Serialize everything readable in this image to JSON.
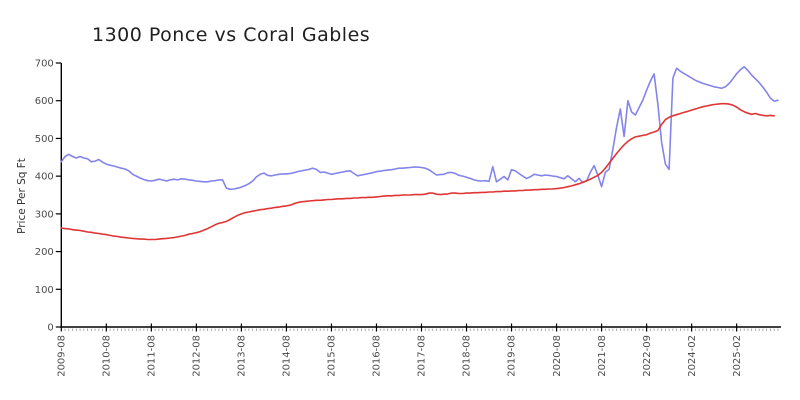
{
  "chart_data": {
    "type": "line",
    "title": "1300 Ponce vs Coral Gables",
    "ylabel": "Price Per Sq Ft",
    "xlabel": "",
    "ylim": [
      0,
      700
    ],
    "y_ticks": [
      0,
      100,
      200,
      300,
      400,
      500,
      600,
      700
    ],
    "x_tick_labels": [
      "2009-08",
      "2010-08",
      "2011-08",
      "2012-08",
      "2013-08",
      "2014-08",
      "2015-08",
      "2016-08",
      "2017-08",
      "2018-08",
      "2019-08",
      "2020-08",
      "2021-08",
      "2022-09",
      "2024-02",
      "2025-02"
    ],
    "x_tick_indices": [
      0,
      12,
      24,
      36,
      48,
      60,
      72,
      84,
      96,
      108,
      120,
      132,
      144,
      156,
      168,
      180
    ],
    "grid": false,
    "legend_position": "none",
    "style": "hand-drawn-xkcd",
    "axis_color": "#000000",
    "tick_label_color": "#4d4d4d",
    "minor_tick_color": "#9a9a9a",
    "series": [
      {
        "name": "Coral Gables",
        "color": "#8484ec",
        "values": [
          438,
          452,
          458,
          452,
          448,
          452,
          448,
          446,
          438,
          440,
          444,
          437,
          432,
          429,
          427,
          424,
          421,
          419,
          414,
          405,
          400,
          395,
          391,
          388,
          387,
          389,
          392,
          390,
          387,
          390,
          392,
          390,
          393,
          392,
          390,
          389,
          387,
          386,
          385,
          385,
          387,
          388,
          390,
          390,
          368,
          365,
          366,
          368,
          371,
          375,
          380,
          387,
          398,
          405,
          408,
          402,
          401,
          403,
          405,
          406,
          406,
          407,
          409,
          412,
          414,
          416,
          418,
          421,
          418,
          410,
          411,
          408,
          405,
          407,
          409,
          411,
          413,
          414,
          407,
          401,
          403,
          405,
          407,
          409,
          412,
          413,
          415,
          416,
          417,
          419,
          421,
          421,
          422,
          423,
          424,
          424,
          423,
          421,
          417,
          410,
          403,
          404,
          405,
          409,
          410,
          407,
          402,
          400,
          397,
          394,
          390,
          388,
          387,
          388,
          386,
          425,
          385,
          392,
          399,
          390,
          417,
          414,
          407,
          400,
          394,
          398,
          405,
          403,
          401,
          403,
          402,
          400,
          399,
          396,
          393,
          401,
          393,
          385,
          394,
          383,
          387,
          410,
          428,
          403,
          372,
          410,
          418,
          470,
          530,
          578,
          505,
          600,
          570,
          562,
          582,
          602,
          628,
          652,
          671,
          590,
          490,
          432,
          418,
          660,
          686,
          678,
          672,
          666,
          660,
          654,
          650,
          646,
          643,
          640,
          637,
          635,
          633,
          637,
          646,
          658,
          672,
          682,
          690,
          680,
          668,
          658,
          648,
          636,
          622,
          607,
          599,
          601
        ]
      },
      {
        "name": "1300 Ponce",
        "color": "#e03535",
        "values": [
          262,
          261,
          260,
          258,
          257,
          256,
          254,
          252,
          251,
          249,
          248,
          246,
          245,
          243,
          241,
          240,
          238,
          237,
          236,
          235,
          234,
          233,
          233,
          232,
          232,
          232,
          233,
          234,
          235,
          236,
          237,
          239,
          241,
          243,
          246,
          248,
          250,
          253,
          257,
          261,
          266,
          271,
          275,
          277,
          280,
          285,
          291,
          296,
          300,
          303,
          305,
          307,
          309,
          311,
          312,
          314,
          315,
          317,
          318,
          320,
          321,
          323,
          327,
          330,
          332,
          333,
          334,
          335,
          336,
          336,
          337,
          338,
          338,
          339,
          340,
          340,
          341,
          341,
          342,
          342,
          343,
          343,
          344,
          344,
          345,
          346,
          347,
          348,
          348,
          349,
          349,
          350,
          350,
          350,
          351,
          351,
          351,
          352,
          355,
          355,
          352,
          351,
          352,
          353,
          355,
          355,
          354,
          354,
          355,
          355,
          356,
          356,
          357,
          357,
          358,
          358,
          359,
          359,
          360,
          360,
          361,
          361,
          362,
          362,
          363,
          363,
          364,
          364,
          365,
          365,
          366,
          366,
          367,
          368,
          370,
          372,
          374,
          377,
          380,
          384,
          388,
          392,
          397,
          402,
          410,
          421,
          434,
          447,
          460,
          472,
          483,
          492,
          499,
          504,
          506,
          508,
          510,
          514,
          517,
          521,
          537,
          550,
          556,
          560,
          563,
          566,
          569,
          572,
          575,
          578,
          581,
          584,
          586,
          588,
          590,
          591,
          592,
          592,
          591,
          588,
          583,
          576,
          571,
          567,
          564,
          566,
          563,
          561,
          560,
          561,
          560
        ]
      }
    ]
  }
}
